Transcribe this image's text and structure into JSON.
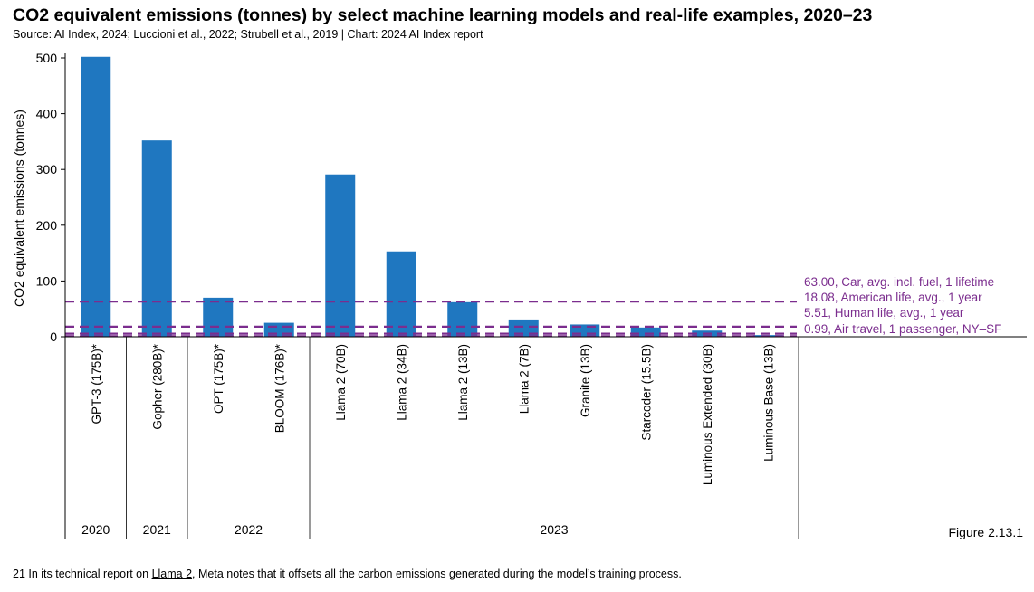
{
  "header": {
    "title": "CO2 equivalent emissions (tonnes) by select machine learning models and real-life examples, 2020–23",
    "subtitle": "Source: AI Index, 2024; Luccioni et al., 2022; Strubell et al., 2019 | Chart: 2024 AI Index report"
  },
  "figure_label": "Figure 2.13.1",
  "footnote": {
    "prefix": "21 In its technical report on ",
    "link": "Llama 2",
    "suffix": ", Meta notes that it offsets all the carbon emissions generated during the model’s training process."
  },
  "colors": {
    "bar": "#1f77c0",
    "reference_line": "#7b2d8e",
    "axis": "#000000"
  },
  "chart_data": {
    "type": "bar",
    "ylabel": "CO2 equivalent emissions (tonnes)",
    "ylim": [
      0,
      520
    ],
    "yticks": [
      0,
      100,
      200,
      300,
      400,
      500
    ],
    "grid": false,
    "categories": [
      "GPT-3 (175B)*",
      "Gopher (280B)*",
      "OPT (175B)*",
      "BLOOM (176B)*",
      "Llama 2 (70B)",
      "Llama 2 (34B)",
      "Llama 2 (13B)",
      "Llama 2 (7B)",
      "Granite (13B)",
      "Starcoder (15.5B)",
      "Luminous Extended (30B)",
      "Luminous Base (13B)"
    ],
    "values": [
      502,
      352,
      70,
      25,
      291,
      153,
      62,
      31,
      22,
      16.5,
      11,
      3
    ],
    "groups": [
      {
        "label": "2020",
        "count": 1
      },
      {
        "label": "2021",
        "count": 1
      },
      {
        "label": "2022",
        "count": 2
      },
      {
        "label": "2023",
        "count": 8
      }
    ],
    "reference_lines": [
      {
        "value": 63.0,
        "label": "63.00, Car, avg. incl. fuel, 1 lifetime"
      },
      {
        "value": 18.08,
        "label": "18.08, American life, avg., 1 year"
      },
      {
        "value": 5.51,
        "label": "5.51, Human life, avg., 1 year"
      },
      {
        "value": 0.99,
        "label": "0.99, Air travel, 1 passenger, NY–SF"
      }
    ]
  }
}
